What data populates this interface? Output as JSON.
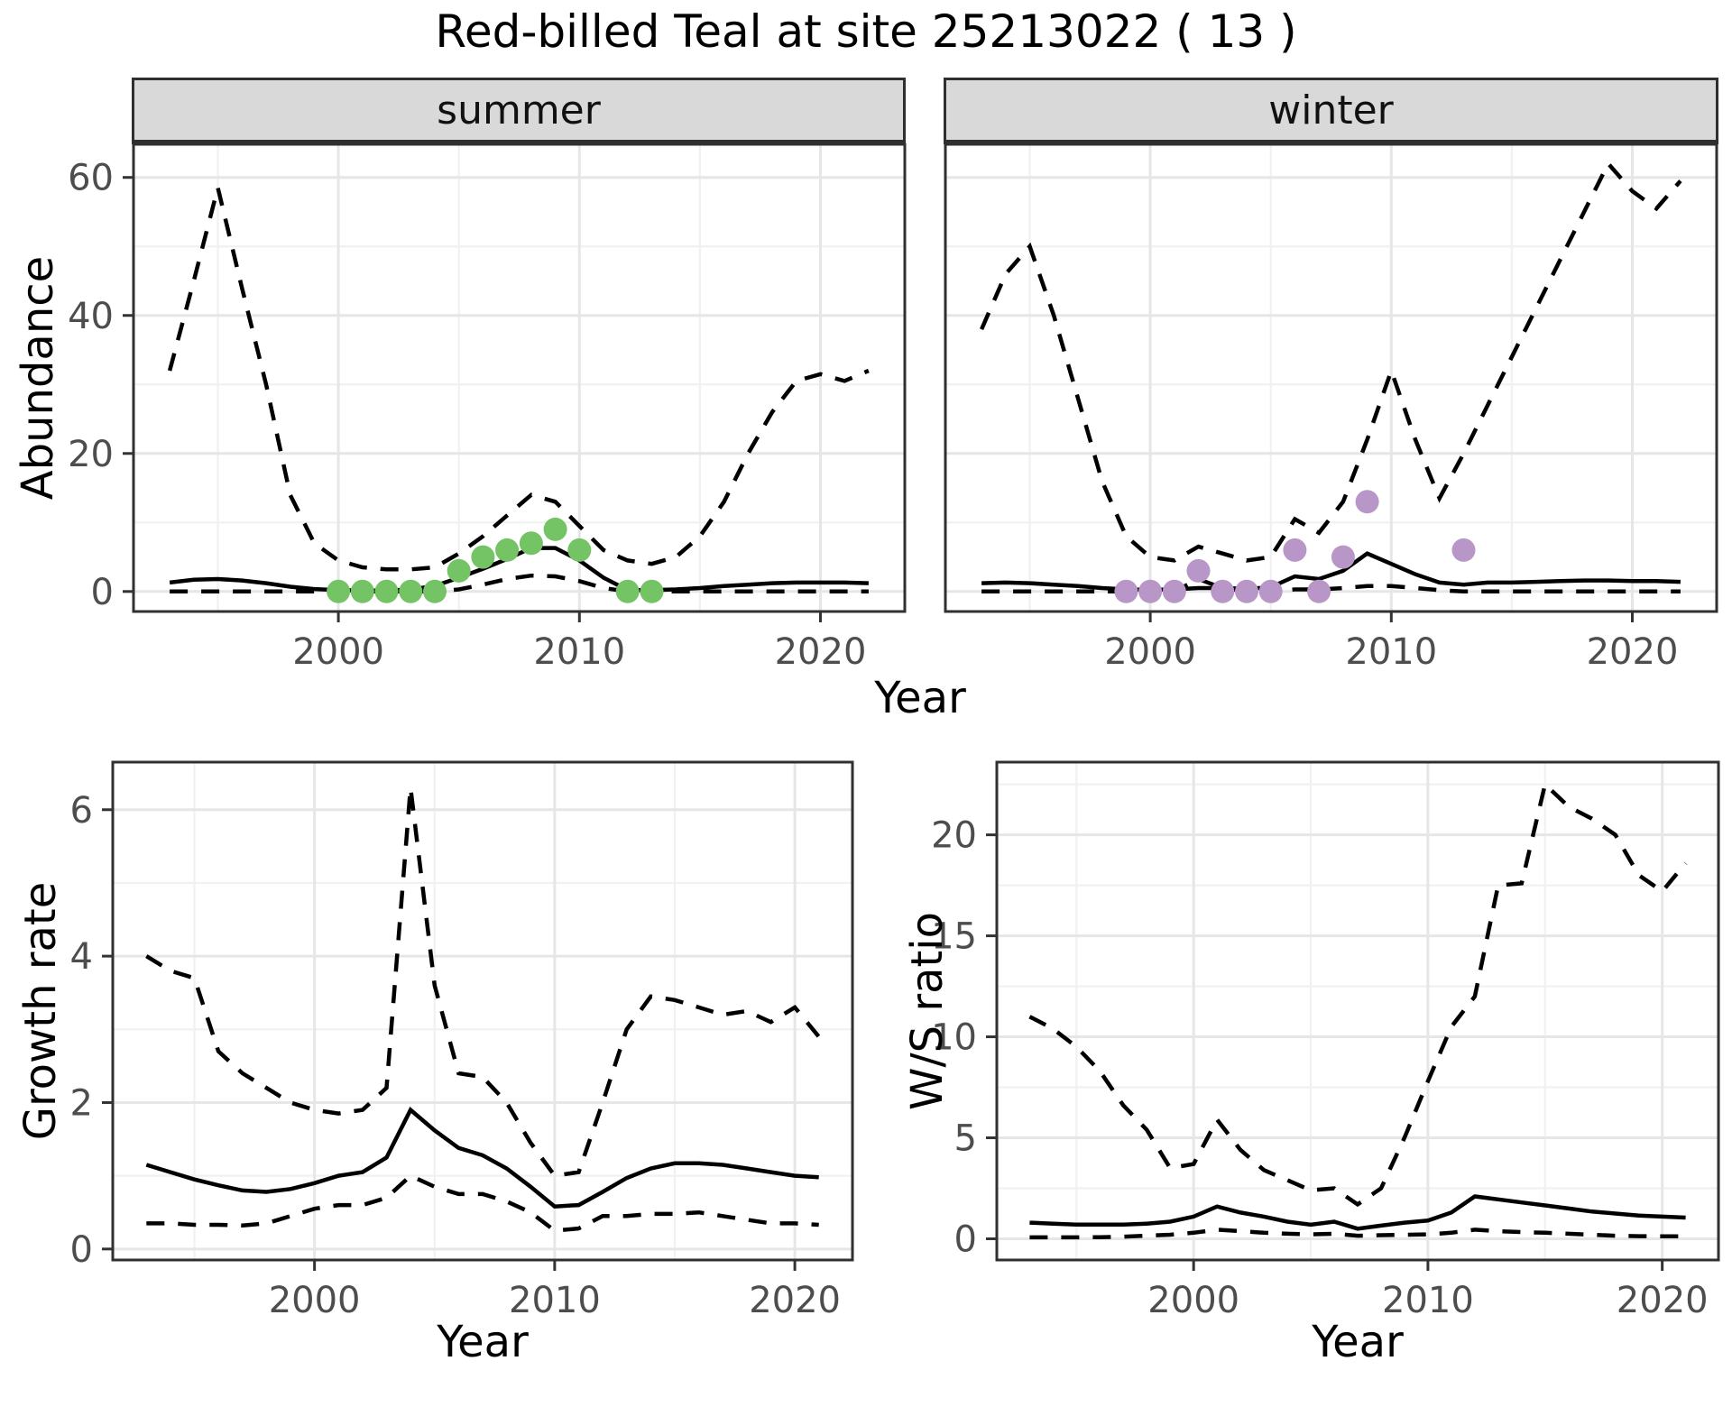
{
  "title": "Red-billed Teal at site 25213022 ( 13 )",
  "facets": {
    "summer": "summer",
    "winter": "winter"
  },
  "axis_titles": {
    "abundance": "Abundance",
    "year": "Year",
    "growth_rate": "Growth rate",
    "ws_ratio": "W/S ratio"
  },
  "colors": {
    "summer_points": "#74C365",
    "winter_points": "#B996C8",
    "line": "#000000",
    "strip_bg": "#D9D9D9",
    "panel_border": "#303030",
    "grid_major": "#E6E6E6",
    "grid_minor": "#F1F1F1",
    "tick_mark": "#333333",
    "tick_label": "#4D4D4D"
  },
  "chart_data": [
    {
      "id": "summer-abundance",
      "type": "line",
      "facet": "summer",
      "ylabel": "Abundance",
      "xlabel": "Year",
      "x": [
        1993,
        1994,
        1995,
        1996,
        1997,
        1998,
        1999,
        2000,
        2001,
        2002,
        2003,
        2004,
        2005,
        2006,
        2007,
        2008,
        2009,
        2010,
        2011,
        2012,
        2013,
        2014,
        2015,
        2016,
        2017,
        2018,
        2019,
        2020,
        2021,
        2022
      ],
      "series": [
        {
          "name": "median",
          "style": "solid",
          "values": [
            1.3,
            1.7,
            1.8,
            1.6,
            1.2,
            0.7,
            0.35,
            0.2,
            0.15,
            0.15,
            0.3,
            0.8,
            2.0,
            3.3,
            4.7,
            6.3,
            6.3,
            4.5,
            2.0,
            0.2,
            0.2,
            0.3,
            0.5,
            0.8,
            1.0,
            1.2,
            1.3,
            1.3,
            1.3,
            1.2
          ]
        },
        {
          "name": "lower_ci",
          "style": "dashed",
          "values": [
            0,
            0,
            0,
            0,
            0,
            0,
            0,
            0,
            0,
            0,
            0,
            0,
            0.3,
            1.0,
            1.8,
            2.3,
            2.2,
            1.5,
            0.5,
            0,
            0,
            0,
            0,
            0,
            0,
            0,
            0,
            0,
            0,
            0
          ]
        },
        {
          "name": "upper_ci",
          "style": "dashed",
          "values": [
            32,
            45,
            58.5,
            44,
            30,
            14,
            7,
            4.5,
            3.5,
            3.2,
            3.2,
            3.5,
            5.5,
            8,
            11,
            14,
            13,
            9.5,
            6,
            4.5,
            4,
            5,
            8,
            13,
            20,
            26,
            30.5,
            31.5,
            30.5,
            32
          ]
        }
      ],
      "points": {
        "name": "observed-counts",
        "color": "#74C365",
        "x": [
          2000,
          2001,
          2002,
          2003,
          2004,
          2005,
          2006,
          2007,
          2008,
          2009,
          2010,
          2012,
          2013
        ],
        "y": [
          0,
          0,
          0,
          0,
          0,
          3,
          5,
          6,
          7,
          9,
          6,
          0,
          0
        ]
      },
      "xlim": [
        1991.5,
        2023.5
      ],
      "ylim": [
        -2.9,
        64.8
      ],
      "xticks": [
        2000,
        2010,
        2020
      ],
      "yticks": [
        0,
        20,
        40,
        60
      ],
      "xminor": [
        1995,
        2005,
        2015
      ],
      "yminor": [
        10,
        30,
        50
      ],
      "y_axis": true
    },
    {
      "id": "winter-abundance",
      "type": "line",
      "facet": "winter",
      "ylabel": "Abundance",
      "xlabel": "Year",
      "x": [
        1993,
        1994,
        1995,
        1996,
        1997,
        1998,
        1999,
        2000,
        2001,
        2002,
        2003,
        2004,
        2005,
        2006,
        2007,
        2008,
        2009,
        2010,
        2011,
        2012,
        2013,
        2014,
        2015,
        2016,
        2017,
        2018,
        2019,
        2020,
        2021,
        2022
      ],
      "series": [
        {
          "name": "median",
          "style": "solid",
          "values": [
            1.2,
            1.3,
            1.2,
            1.0,
            0.8,
            0.5,
            0.3,
            0.25,
            0.3,
            0.5,
            0.5,
            0.4,
            0.6,
            2.2,
            1.8,
            3.0,
            5.5,
            4.0,
            2.5,
            1.3,
            1.0,
            1.3,
            1.3,
            1.4,
            1.5,
            1.6,
            1.6,
            1.5,
            1.5,
            1.4
          ]
        },
        {
          "name": "lower_ci",
          "style": "dashed",
          "values": [
            0,
            0,
            0,
            0,
            0,
            0,
            0,
            0,
            0,
            1.8,
            0.5,
            0,
            0,
            0.3,
            0.3,
            0.5,
            0.8,
            0.8,
            0.5,
            0.2,
            0,
            0,
            0,
            0,
            0,
            0,
            0,
            0,
            0,
            0
          ]
        },
        {
          "name": "upper_ci",
          "style": "dashed",
          "values": [
            38,
            46,
            50,
            40,
            28,
            16,
            8,
            5,
            4.5,
            6.5,
            5.5,
            4.5,
            5,
            10.5,
            8.5,
            13,
            22,
            32,
            22,
            13.5,
            20,
            27,
            34,
            41,
            48,
            55,
            62,
            58,
            55.5,
            59.5
          ]
        }
      ],
      "points": {
        "name": "observed-counts",
        "color": "#B996C8",
        "x": [
          1999,
          2000,
          2001,
          2002,
          2003,
          2004,
          2005,
          2006,
          2007,
          2008,
          2009,
          2013
        ],
        "y": [
          0,
          0,
          0,
          3,
          0,
          0,
          0,
          6,
          0,
          5,
          13,
          6
        ]
      },
      "xlim": [
        1991.5,
        2023.5
      ],
      "ylim": [
        -2.9,
        64.8
      ],
      "xticks": [
        2000,
        2010,
        2020
      ],
      "yticks": [
        0,
        20,
        40,
        60
      ],
      "xminor": [
        1995,
        2005,
        2015
      ],
      "yminor": [
        10,
        30,
        50
      ],
      "y_axis": false
    },
    {
      "id": "growth-rate",
      "type": "line",
      "facet": null,
      "ylabel": "Growth rate",
      "xlabel": "Year",
      "x": [
        1993,
        1994,
        1995,
        1996,
        1997,
        1998,
        1999,
        2000,
        2001,
        2002,
        2003,
        2004,
        2005,
        2006,
        2007,
        2008,
        2009,
        2010,
        2011,
        2012,
        2013,
        2014,
        2015,
        2016,
        2017,
        2018,
        2019,
        2020,
        2021
      ],
      "series": [
        {
          "name": "median",
          "style": "solid",
          "values": [
            1.15,
            1.05,
            0.95,
            0.87,
            0.8,
            0.78,
            0.82,
            0.9,
            1.0,
            1.05,
            1.25,
            1.9,
            1.62,
            1.38,
            1.28,
            1.1,
            0.85,
            0.58,
            0.6,
            0.78,
            0.97,
            1.1,
            1.17,
            1.17,
            1.15,
            1.1,
            1.05,
            1.0,
            0.98
          ]
        },
        {
          "name": "lower_ci",
          "style": "dashed",
          "values": [
            0.35,
            0.35,
            0.33,
            0.33,
            0.32,
            0.35,
            0.45,
            0.55,
            0.6,
            0.6,
            0.7,
            1.0,
            0.85,
            0.75,
            0.75,
            0.65,
            0.5,
            0.25,
            0.28,
            0.45,
            0.45,
            0.48,
            0.48,
            0.5,
            0.45,
            0.4,
            0.35,
            0.35,
            0.33
          ]
        },
        {
          "name": "upper_ci",
          "style": "dashed",
          "values": [
            4.0,
            3.8,
            3.7,
            2.7,
            2.4,
            2.2,
            2.0,
            1.9,
            1.85,
            1.9,
            2.2,
            6.3,
            3.6,
            2.4,
            2.35,
            2.0,
            1.45,
            1.0,
            1.05,
            2.0,
            3.0,
            3.45,
            3.4,
            3.3,
            3.2,
            3.25,
            3.1,
            3.3,
            2.9
          ]
        }
      ],
      "points": null,
      "xlim": [
        1991.6,
        2022.4
      ],
      "ylim": [
        -0.15,
        6.65
      ],
      "xticks": [
        2000,
        2010,
        2020
      ],
      "yticks": [
        0,
        2,
        4,
        6
      ],
      "xminor": [
        1995,
        2005,
        2015
      ],
      "yminor": [
        1,
        3,
        5
      ],
      "y_axis": true
    },
    {
      "id": "ws-ratio",
      "type": "line",
      "facet": null,
      "ylabel": "W/S ratio",
      "xlabel": "Year",
      "x": [
        1993,
        1994,
        1995,
        1996,
        1997,
        1998,
        1999,
        2000,
        2001,
        2002,
        2003,
        2004,
        2005,
        2006,
        2007,
        2008,
        2009,
        2010,
        2011,
        2012,
        2013,
        2014,
        2015,
        2016,
        2017,
        2018,
        2019,
        2020,
        2021
      ],
      "series": [
        {
          "name": "median",
          "style": "solid",
          "values": [
            0.8,
            0.75,
            0.7,
            0.7,
            0.7,
            0.75,
            0.85,
            1.1,
            1.6,
            1.3,
            1.1,
            0.85,
            0.7,
            0.85,
            0.5,
            0.65,
            0.8,
            0.9,
            1.3,
            2.1,
            1.95,
            1.8,
            1.65,
            1.5,
            1.35,
            1.25,
            1.15,
            1.1,
            1.05
          ]
        },
        {
          "name": "lower_ci",
          "style": "dashed",
          "values": [
            0.07,
            0.07,
            0.07,
            0.08,
            0.1,
            0.15,
            0.2,
            0.3,
            0.45,
            0.38,
            0.3,
            0.25,
            0.22,
            0.25,
            0.15,
            0.18,
            0.2,
            0.22,
            0.3,
            0.45,
            0.38,
            0.33,
            0.3,
            0.25,
            0.2,
            0.15,
            0.13,
            0.12,
            0.12
          ]
        },
        {
          "name": "upper_ci",
          "style": "dashed",
          "values": [
            11,
            10.4,
            9.5,
            8.3,
            6.6,
            5.4,
            3.5,
            3.7,
            5.9,
            4.4,
            3.4,
            2.9,
            2.4,
            2.5,
            1.7,
            2.5,
            5.0,
            7.8,
            10.5,
            12.0,
            17.5,
            17.6,
            22.5,
            21.4,
            20.8,
            20.0,
            18.0,
            17.2,
            18.6
          ]
        }
      ],
      "points": null,
      "xlim": [
        1991.6,
        2022.4
      ],
      "ylim": [
        -1.05,
        23.6
      ],
      "xticks": [
        2000,
        2010,
        2020
      ],
      "yticks": [
        0,
        5,
        10,
        15,
        20
      ],
      "xminor": [
        1995,
        2005,
        2015
      ],
      "yminor": [
        2.5,
        7.5,
        12.5,
        17.5,
        22.5
      ],
      "y_axis": true
    }
  ]
}
